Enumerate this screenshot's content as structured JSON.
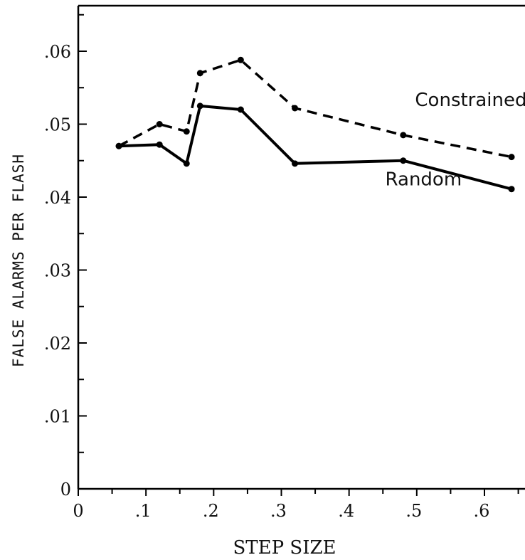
{
  "chart_data": {
    "type": "line",
    "xlabel": "STEP SIZE",
    "ylabel": "FALSE ALARMS PER FLASH",
    "xlim": [
      0,
      0.65
    ],
    "ylim": [
      0,
      0.066
    ],
    "x_ticks": [
      {
        "value": 0,
        "label": "0"
      },
      {
        "value": 0.1,
        "label": ".1"
      },
      {
        "value": 0.2,
        "label": ".2"
      },
      {
        "value": 0.3,
        "label": ".3"
      },
      {
        "value": 0.4,
        "label": ".4"
      },
      {
        "value": 0.5,
        "label": ".5"
      },
      {
        "value": 0.6,
        "label": ".6"
      }
    ],
    "y_ticks": [
      {
        "value": 0,
        "label": "0"
      },
      {
        "value": 0.01,
        "label": ".01"
      },
      {
        "value": 0.02,
        "label": ".02"
      },
      {
        "value": 0.03,
        "label": ".03"
      },
      {
        "value": 0.04,
        "label": ".04"
      },
      {
        "value": 0.05,
        "label": ".05"
      },
      {
        "value": 0.06,
        "label": ".06"
      }
    ],
    "y_minor_step": 0.005,
    "x_minor_step": 0.05,
    "grid": false,
    "legend": "none",
    "series": [
      {
        "name": "Random",
        "style": "solid",
        "color": "#000000",
        "label_anchor_x": 0.51,
        "label_anchor_y": 0.0416,
        "x": [
          0.06,
          0.12,
          0.16,
          0.18,
          0.24,
          0.32,
          0.48,
          0.64
        ],
        "y": [
          0.047,
          0.0472,
          0.0446,
          0.0525,
          0.052,
          0.0446,
          0.045,
          0.0411
        ]
      },
      {
        "name": "Constrained",
        "style": "dashed",
        "color": "#000000",
        "label_anchor_x": 0.58,
        "label_anchor_y": 0.0525,
        "x": [
          0.06,
          0.12,
          0.16,
          0.18,
          0.24,
          0.32,
          0.48,
          0.64
        ],
        "y": [
          0.047,
          0.05,
          0.049,
          0.057,
          0.0588,
          0.0522,
          0.0485,
          0.0455
        ]
      }
    ]
  }
}
